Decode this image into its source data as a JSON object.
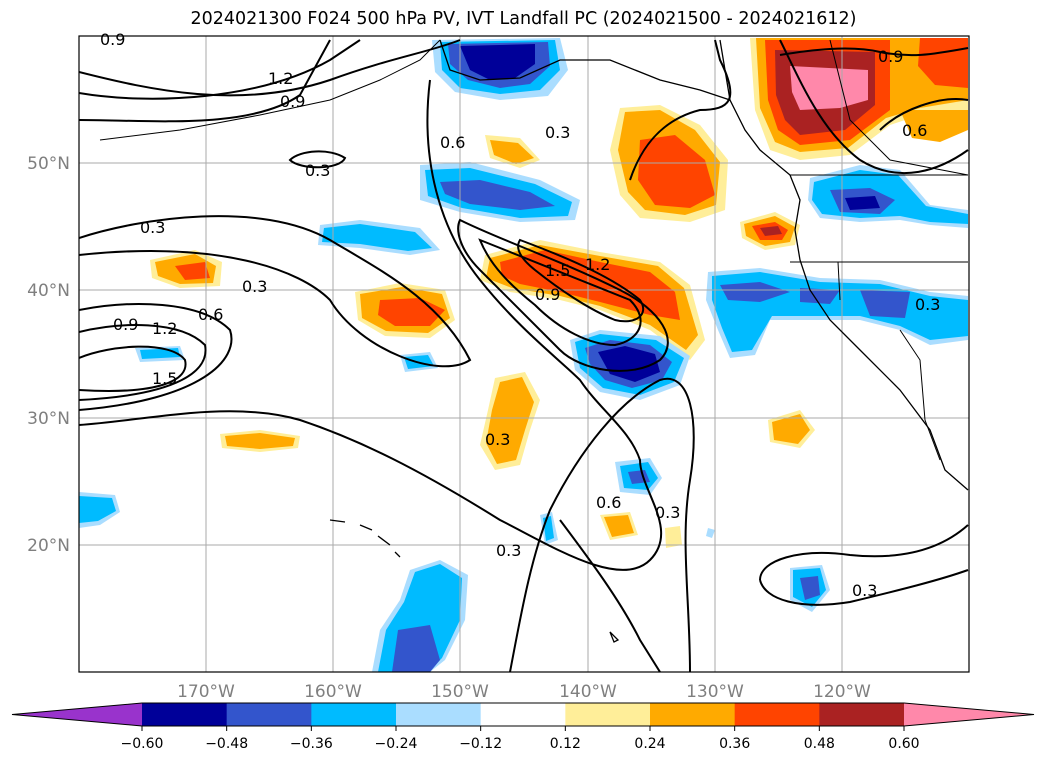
{
  "title": "2024021300 F024 500 hPa PV, IVT Landfall PC (2024021500 - 2024021612)",
  "map": {
    "lon_range": [
      -180,
      -110
    ],
    "lat_range": [
      10,
      60
    ],
    "lat_ticks": [
      {
        "value": 20,
        "label": "20°N"
      },
      {
        "value": 30,
        "label": "30°N"
      },
      {
        "value": 40,
        "label": "40°N"
      },
      {
        "value": 50,
        "label": "50°N"
      }
    ],
    "lon_ticks": [
      {
        "value": -170,
        "label": "170°W"
      },
      {
        "value": -160,
        "label": "160°W"
      },
      {
        "value": -150,
        "label": "150°W"
      },
      {
        "value": -140,
        "label": "140°W"
      },
      {
        "value": -130,
        "label": "130°W"
      },
      {
        "value": -120,
        "label": "120°W"
      }
    ],
    "contour_labels": [
      "0.9",
      "1.2",
      "0.9",
      "0.3",
      "0.6",
      "0.3",
      "0.3",
      "0.3",
      "1.5",
      "1.2",
      "0.9",
      "0.9",
      "1.2",
      "0.6",
      "1.5",
      "0.3",
      "0.6",
      "0.3",
      "0.3",
      "0.3",
      "0.9",
      "0.6",
      "0.3"
    ]
  },
  "colorbar": {
    "colors": [
      "#9933cc",
      "#000099",
      "#3355cc",
      "#00bbff",
      "#aaddff",
      "#ffffff",
      "#ffee99",
      "#ffaa00",
      "#ff4400",
      "#aa2222",
      "#ff88aa"
    ],
    "labels": [
      "−0.60",
      "−0.48",
      "−0.36",
      "−0.24",
      "−0.12",
      "0.12",
      "0.24",
      "0.36",
      "0.48",
      "0.60"
    ]
  },
  "colors": {
    "negative_strong": "#000099",
    "negative_mid": "#3355cc",
    "negative_light": "#00bbff",
    "negative_faint": "#aaddff",
    "positive_faint": "#ffee99",
    "positive_light": "#ffaa00",
    "positive_mid": "#ff4400",
    "positive_strong": "#aa2222",
    "positive_max": "#ff88aa"
  }
}
